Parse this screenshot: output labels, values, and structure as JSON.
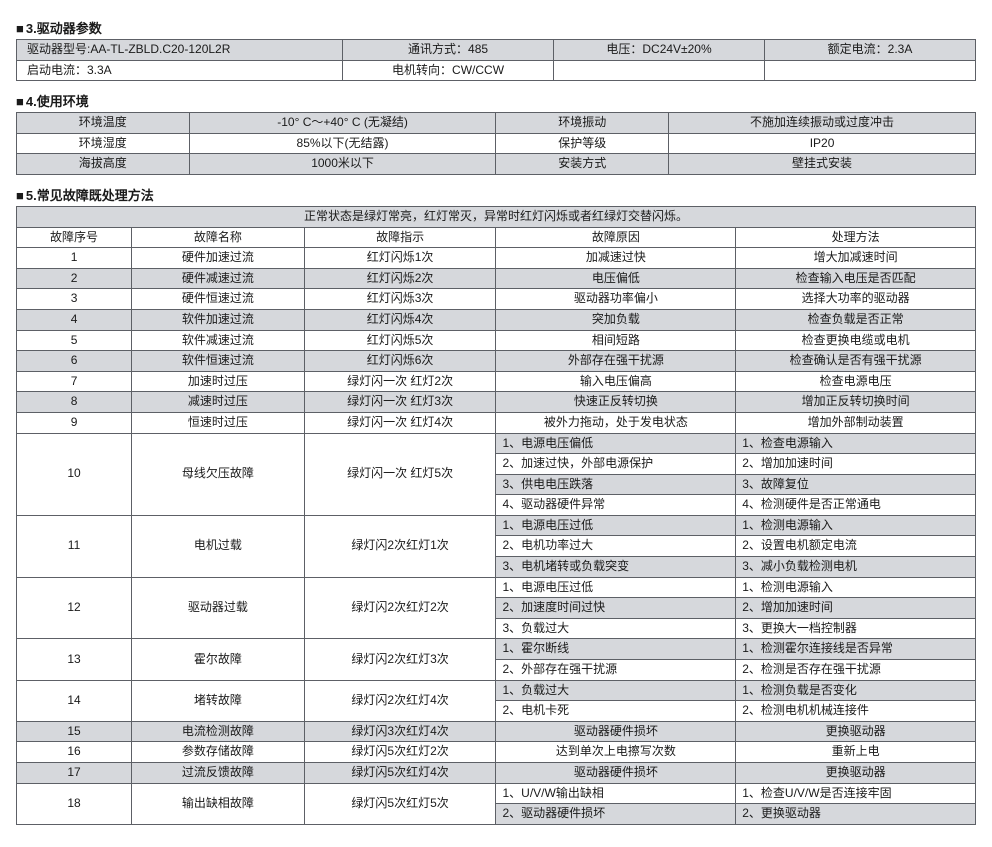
{
  "colors": {
    "border": "#5d6066",
    "shade": "#d6d8dc",
    "text": "#1a1a1a",
    "bg": "#ffffff"
  },
  "font": {
    "family": "Microsoft YaHei / SimSun",
    "size_pt": 9
  },
  "section3": {
    "title": "3.驱动器参数",
    "row1": {
      "c1": "驱动器型号:AA-TL-ZBLD.C20-120L2R",
      "c2": "通讯方式：485",
      "c3": "电压：DC24V±20%",
      "c4": "额定电流：2.3A"
    },
    "row2": {
      "c1": "启动电流：3.3A",
      "c2": "电机转向：CW/CCW",
      "c3": "",
      "c4": ""
    }
  },
  "section4": {
    "title": "4.使用环境",
    "rows": [
      [
        "环境温度",
        "-10° C～+40° C (无凝结)",
        "环境振动",
        "不施加连续振动或过度冲击"
      ],
      [
        "环境湿度",
        "85%以下(无结露)",
        "保护等级",
        "IP20"
      ],
      [
        "海拔高度",
        "1000米以下",
        "安装方式",
        "壁挂式安装"
      ]
    ]
  },
  "section5": {
    "title": "5.常见故障既处理方法",
    "banner": "正常状态是绿灯常亮，红灯常灭，异常时红灯闪烁或者红绿灯交替闪烁。",
    "headers": [
      "故障序号",
      "故障名称",
      "故障指示",
      "故障原因",
      "处理方法"
    ],
    "rows": [
      {
        "shade": false,
        "no": "1",
        "name": "硬件加速过流",
        "ind": "红灯闪烁1次",
        "cause": [
          "加减速过快"
        ],
        "fix": [
          "增大加减速时间"
        ]
      },
      {
        "shade": true,
        "no": "2",
        "name": "硬件减速过流",
        "ind": "红灯闪烁2次",
        "cause": [
          "电压偏低"
        ],
        "fix": [
          "检查输入电压是否匹配"
        ]
      },
      {
        "shade": false,
        "no": "3",
        "name": "硬件恒速过流",
        "ind": "红灯闪烁3次",
        "cause": [
          "驱动器功率偏小"
        ],
        "fix": [
          "选择大功率的驱动器"
        ]
      },
      {
        "shade": true,
        "no": "4",
        "name": "软件加速过流",
        "ind": "红灯闪烁4次",
        "cause": [
          "突加负载"
        ],
        "fix": [
          "检查负载是否正常"
        ]
      },
      {
        "shade": false,
        "no": "5",
        "name": "软件减速过流",
        "ind": "红灯闪烁5次",
        "cause": [
          "相间短路"
        ],
        "fix": [
          "检查更换电缆或电机"
        ]
      },
      {
        "shade": true,
        "no": "6",
        "name": "软件恒速过流",
        "ind": "红灯闪烁6次",
        "cause": [
          "外部存在强干扰源"
        ],
        "fix": [
          "检查确认是否有强干扰源"
        ]
      },
      {
        "shade": false,
        "no": "7",
        "name": "加速时过压",
        "ind": "绿灯闪一次  红灯2次",
        "cause": [
          "输入电压偏高"
        ],
        "fix": [
          "检查电源电压"
        ]
      },
      {
        "shade": true,
        "no": "8",
        "name": "减速时过压",
        "ind": "绿灯闪一次  红灯3次",
        "cause": [
          "快速正反转切换"
        ],
        "fix": [
          "增加正反转切换时间"
        ]
      },
      {
        "shade": false,
        "no": "9",
        "name": "恒速时过压",
        "ind": "绿灯闪一次  红灯4次",
        "cause": [
          "被外力拖动，处于发电状态"
        ],
        "fix": [
          "增加外部制动装置"
        ]
      },
      {
        "shade": false,
        "no": "10",
        "name": "母线欠压故障",
        "ind": "绿灯闪一次  红灯5次",
        "cause": [
          "1、电源电压偏低",
          "2、加速过快，外部电源保护",
          "3、供电电压跌落",
          "4、驱动器硬件异常"
        ],
        "fix": [
          "1、检查电源输入",
          "2、增加加速时间",
          "3、故障复位",
          "4、检测硬件是否正常通电"
        ],
        "subshade": [
          true,
          false,
          true,
          false
        ]
      },
      {
        "shade": false,
        "no": "11",
        "name": "电机过载",
        "ind": "绿灯闪2次红灯1次",
        "cause": [
          "1、电源电压过低",
          "2、电机功率过大",
          "3、电机堵转或负载突变"
        ],
        "fix": [
          "1、检测电源输入",
          "2、设置电机额定电流",
          "3、减小负载检测电机"
        ],
        "subshade": [
          true,
          false,
          true
        ]
      },
      {
        "shade": false,
        "no": "12",
        "name": "驱动器过载",
        "ind": "绿灯闪2次红灯2次",
        "cause": [
          "1、电源电压过低",
          "2、加速度时间过快",
          "3、负载过大"
        ],
        "fix": [
          "1、检测电源输入",
          "2、增加加速时间",
          "3、更换大一档控制器"
        ],
        "subshade": [
          false,
          true,
          false
        ]
      },
      {
        "shade": false,
        "no": "13",
        "name": "霍尔故障",
        "ind": "绿灯闪2次红灯3次",
        "cause": [
          "1、霍尔断线",
          "2、外部存在强干扰源"
        ],
        "fix": [
          "1、检测霍尔连接线是否异常",
          "2、检测是否存在强干扰源"
        ],
        "subshade": [
          true,
          false
        ]
      },
      {
        "shade": false,
        "no": "14",
        "name": "堵转故障",
        "ind": "绿灯闪2次红灯4次",
        "cause": [
          "1、负载过大",
          "2、电机卡死"
        ],
        "fix": [
          "1、检测负载是否变化",
          "2、检测电机机械连接件"
        ],
        "subshade": [
          true,
          false
        ]
      },
      {
        "shade": true,
        "no": "15",
        "name": "电流检测故障",
        "ind": "绿灯闪3次红灯4次",
        "cause": [
          "驱动器硬件损坏"
        ],
        "fix": [
          "更换驱动器"
        ]
      },
      {
        "shade": false,
        "no": "16",
        "name": "参数存储故障",
        "ind": "绿灯闪5次红灯2次",
        "cause": [
          "达到单次上电擦写次数"
        ],
        "fix": [
          "重新上电"
        ]
      },
      {
        "shade": true,
        "no": "17",
        "name": "过流反馈故障",
        "ind": "绿灯闪5次红灯4次",
        "cause": [
          "驱动器硬件损坏"
        ],
        "fix": [
          "更换驱动器"
        ]
      },
      {
        "shade": false,
        "no": "18",
        "name": "输出缺相故障",
        "ind": "绿灯闪5次红灯5次",
        "cause": [
          "1、U/V/W输出缺相",
          "2、驱动器硬件损坏"
        ],
        "fix": [
          "1、检查U/V/W是否连接牢固",
          "2、更换驱动器"
        ],
        "subshade": [
          false,
          true
        ]
      }
    ]
  }
}
